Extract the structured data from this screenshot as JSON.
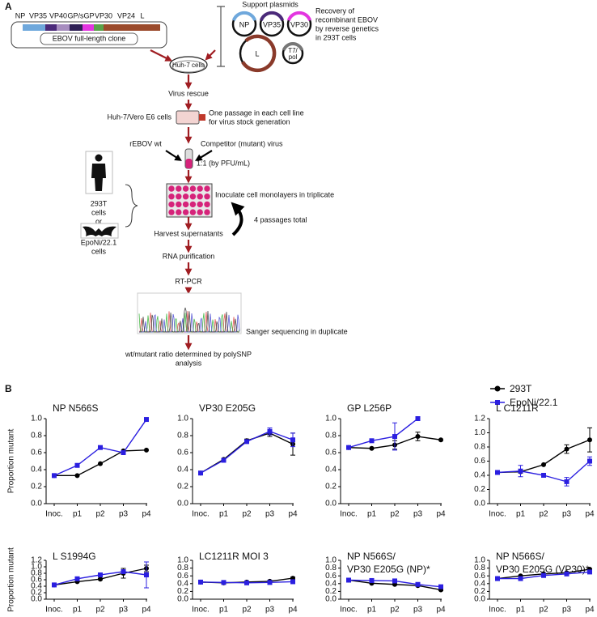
{
  "panel_a": {
    "letter": "A",
    "genes": [
      "NP",
      "VP35",
      "VP40",
      "GP/sGP",
      "VP30",
      "VP24",
      "L"
    ],
    "clone_label": "EBOV full-length clone",
    "support_plasmids": "Support plasmids",
    "plasmids": [
      "NP",
      "VP35",
      "VP30",
      "L"
    ],
    "t7_pol": [
      "T7/",
      "pol"
    ],
    "recovery": [
      "Recovery of",
      "recombinant EBOV",
      "by reverse genetics",
      "in 293T cells"
    ],
    "huh7": "Huh-7 cells",
    "virus_rescue": "Virus rescue",
    "cell_lines": "Huh-7/Vero E6 cells",
    "passage": [
      "One passage in each cell line",
      "for virus stock generation"
    ],
    "wt": "rEBOV wt",
    "competitor": "Competitor (mutant) virus",
    "ratio": "1:1 (by PFU/mL)",
    "cells_293t": [
      "293T",
      "cells",
      "or"
    ],
    "cells_eponi": [
      "EpoNi/22.1",
      "cells"
    ],
    "inoculate": "Inoculate cell monolayers in triplicate",
    "harvest": "Harvest supernatants",
    "passages": "4 passages total",
    "rna": "RNA purification",
    "rtpcr": "RT-PCR",
    "sanger": "Sanger sequencing in duplicate",
    "polysnp": [
      "wt/mutant ratio determined by polySNP",
      "analysis"
    ]
  },
  "panel_b": {
    "letter": "B"
  },
  "chart_data": [
    {
      "type": "line",
      "title": [
        "NP N566S"
      ],
      "ylabel": "Proportion mutant",
      "categories": [
        "Inoc.",
        "p1",
        "p2",
        "p3",
        "p4"
      ],
      "ylim": [
        0,
        1
      ],
      "yticks": [
        {
          "value": 0,
          "label": "0.0"
        },
        0.2,
        0.4,
        0.6,
        0.8,
        {
          "value": 1,
          "label": "1.0"
        }
      ],
      "series": [
        {
          "name": "293T",
          "color": "#000000",
          "marker": "circle",
          "values": [
            0.33,
            0.33,
            0.47,
            0.62,
            0.63
          ],
          "errors": [
            0,
            0,
            0,
            0,
            0
          ]
        },
        {
          "name": "EpoNi/22.1",
          "color": "#2b1fe0",
          "marker": "square",
          "values": [
            0.33,
            0.45,
            0.66,
            0.6,
            0.99
          ],
          "errors": [
            0,
            0,
            0,
            0,
            0
          ]
        }
      ]
    },
    {
      "type": "line",
      "title": [
        "VP30 E205G"
      ],
      "categories": [
        "Inoc.",
        "p1",
        "p2",
        "p3",
        "p4"
      ],
      "ylim": [
        0,
        1
      ],
      "yticks": [
        {
          "value": 0,
          "label": "0.0"
        },
        0.2,
        0.4,
        0.6,
        0.8,
        {
          "value": 1,
          "label": "1.0"
        }
      ],
      "series": [
        {
          "name": "293T",
          "color": "#000000",
          "marker": "circle",
          "values": [
            0.36,
            0.52,
            0.74,
            0.83,
            0.7
          ],
          "errors": [
            0,
            0.01,
            0.02,
            0.04,
            0.13
          ]
        },
        {
          "name": "EpoNi/22.1",
          "color": "#2b1fe0",
          "marker": "square",
          "values": [
            0.36,
            0.51,
            0.73,
            0.85,
            0.75
          ],
          "errors": [
            0,
            0.01,
            0.02,
            0.04,
            0.08
          ]
        }
      ]
    },
    {
      "type": "line",
      "title": [
        "GP L256P"
      ],
      "categories": [
        "Inoc.",
        "p1",
        "p2",
        "p3",
        "p4"
      ],
      "ylim": [
        0,
        1
      ],
      "yticks": [
        {
          "value": 0,
          "label": "0.0"
        },
        0.2,
        0.4,
        0.6,
        0.8,
        {
          "value": 1,
          "label": "1.0"
        }
      ],
      "series": [
        {
          "name": "293T",
          "color": "#000000",
          "marker": "circle",
          "values": [
            0.66,
            0.65,
            0.69,
            0.79,
            0.75
          ],
          "errors": [
            0,
            0,
            0.05,
            0.05,
            0
          ]
        },
        {
          "name": "EpoNi/22.1",
          "color": "#2b1fe0",
          "marker": "square",
          "values": [
            0.66,
            0.74,
            0.79,
            1.0,
            null
          ],
          "errors": [
            0,
            0,
            0.16,
            0,
            null
          ]
        }
      ]
    },
    {
      "type": "line",
      "title": [
        "L C1211R"
      ],
      "categories": [
        "Inoc.",
        "p1",
        "p2",
        "p3",
        "p4"
      ],
      "ylim": [
        0,
        1.2
      ],
      "yticks": [
        {
          "value": 0,
          "label": "0.0"
        },
        0.2,
        0.4,
        0.6,
        0.8,
        {
          "value": 1,
          "label": "1.0"
        },
        1.2
      ],
      "series": [
        {
          "name": "293T",
          "color": "#000000",
          "marker": "circle",
          "values": [
            0.44,
            0.45,
            0.55,
            0.77,
            0.9
          ],
          "errors": [
            0,
            0.02,
            0,
            0.06,
            0.17
          ]
        },
        {
          "name": "EpoNi/22.1",
          "color": "#2b1fe0",
          "marker": "square",
          "values": [
            0.44,
            0.46,
            0.4,
            0.31,
            0.6
          ],
          "errors": [
            0,
            0.08,
            0,
            0.06,
            0.06
          ]
        }
      ]
    },
    {
      "type": "line",
      "title": [
        "L S1994G"
      ],
      "ylabel": "Proportion mutant",
      "categories": [
        "Inoc.",
        "p1",
        "p2",
        "p3",
        "p4"
      ],
      "ylim": [
        0,
        1.2
      ],
      "yticks": [
        {
          "value": 0,
          "label": "0.0"
        },
        0.2,
        0.4,
        0.6,
        0.8,
        {
          "value": 1,
          "label": "1.0"
        },
        1.2
      ],
      "series": [
        {
          "name": "293T",
          "color": "#000000",
          "marker": "circle",
          "values": [
            0.44,
            0.54,
            0.62,
            0.8,
            0.95
          ],
          "errors": [
            0,
            0.01,
            0.02,
            0.15,
            0.1
          ]
        },
        {
          "name": "EpoNi/22.1",
          "color": "#2b1fe0",
          "marker": "square",
          "values": [
            0.44,
            0.63,
            0.75,
            0.85,
            0.75
          ],
          "errors": [
            0,
            0.01,
            0.02,
            0.05,
            0.4
          ]
        }
      ]
    },
    {
      "type": "line",
      "title": [
        "LC1211R MOI 3"
      ],
      "categories": [
        "Inoc.",
        "p1",
        "p2",
        "p3",
        "p4"
      ],
      "ylim": [
        0,
        1
      ],
      "yticks": [
        {
          "value": 0,
          "label": "0.0"
        },
        0.2,
        0.4,
        0.6,
        0.8,
        {
          "value": 1,
          "label": "1.0"
        }
      ],
      "series": [
        {
          "name": "293T",
          "color": "#000000",
          "marker": "circle",
          "values": [
            0.44,
            0.42,
            0.44,
            0.46,
            0.54
          ],
          "errors": [
            0,
            0.01,
            0.01,
            0.03,
            0.03
          ]
        },
        {
          "name": "EpoNi/22.1",
          "color": "#2b1fe0",
          "marker": "square",
          "values": [
            0.44,
            0.43,
            0.42,
            0.43,
            0.45
          ],
          "errors": [
            0,
            0.01,
            0.01,
            0.02,
            0.05
          ]
        }
      ]
    },
    {
      "type": "line",
      "title": [
        "NP N566S/",
        "VP30 E205G (NP)*"
      ],
      "categories": [
        "Inoc.",
        "p1",
        "p2",
        "p3",
        "p4"
      ],
      "ylim": [
        0,
        1
      ],
      "yticks": [
        {
          "value": 0,
          "label": "0.0"
        },
        0.2,
        0.4,
        0.6,
        0.8,
        {
          "value": 1,
          "label": "1.0"
        }
      ],
      "series": [
        {
          "name": "293T",
          "color": "#000000",
          "marker": "circle",
          "values": [
            0.49,
            0.41,
            0.38,
            0.35,
            0.24
          ],
          "errors": [
            0.02,
            0.01,
            0.01,
            0.02,
            0.02
          ]
        },
        {
          "name": "EpoNi/22.1",
          "color": "#2b1fe0",
          "marker": "square",
          "values": [
            0.49,
            0.48,
            0.47,
            0.38,
            0.32
          ],
          "errors": [
            0.02,
            0.01,
            0.02,
            0.03,
            0.03
          ]
        }
      ]
    },
    {
      "type": "line",
      "title": [
        "NP N566S/",
        "VP30 E205G (VP30)*"
      ],
      "categories": [
        "Inoc.",
        "p1",
        "p2",
        "p3",
        "p4"
      ],
      "ylim": [
        0,
        1
      ],
      "yticks": [
        {
          "value": 0,
          "label": "0.0"
        },
        0.2,
        0.4,
        0.6,
        0.8,
        {
          "value": 1,
          "label": "1.0"
        }
      ],
      "series": [
        {
          "name": "293T",
          "color": "#000000",
          "marker": "circle",
          "values": [
            0.53,
            0.6,
            0.65,
            0.68,
            0.77
          ],
          "errors": [
            0.01,
            0.01,
            0.01,
            0.01,
            0.01
          ]
        },
        {
          "name": "EpoNi/22.1",
          "color": "#2b1fe0",
          "marker": "square",
          "values": [
            0.53,
            0.53,
            0.61,
            0.65,
            0.7
          ],
          "errors": [
            0.01,
            0.01,
            0.01,
            0.01,
            0.01
          ]
        }
      ]
    }
  ]
}
